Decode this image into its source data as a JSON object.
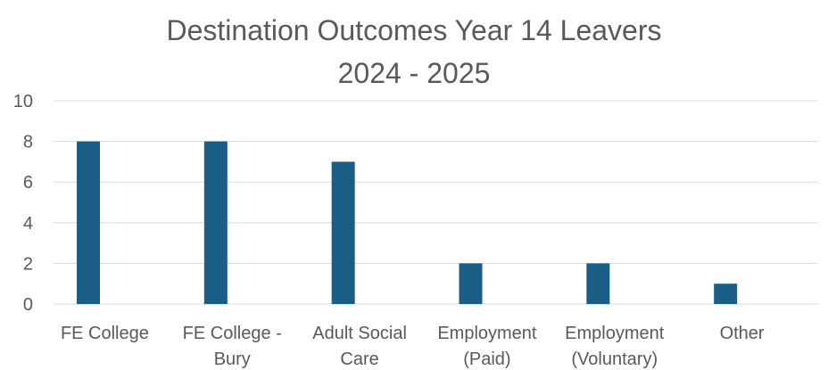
{
  "chart_data": {
    "type": "bar",
    "title": "Destination Outcomes Year 14 Leavers",
    "subtitle": "2024 - 2025",
    "categories": [
      [
        "FE College"
      ],
      [
        "FE College -",
        "Bury"
      ],
      [
        "Adult Social",
        "Care"
      ],
      [
        "Employment",
        "(Paid)"
      ],
      [
        "Employment",
        "(Voluntary)"
      ],
      [
        "Other"
      ]
    ],
    "values": [
      8,
      8,
      7,
      2,
      2,
      1
    ],
    "ylim": [
      0,
      10
    ],
    "yticks": [
      "0",
      "2",
      "4",
      "6",
      "8",
      "10"
    ],
    "grid": true,
    "legend": "none",
    "colors": {
      "bar": "#1a5e85",
      "grid": "#d9d9d9",
      "text": "#595959"
    }
  }
}
